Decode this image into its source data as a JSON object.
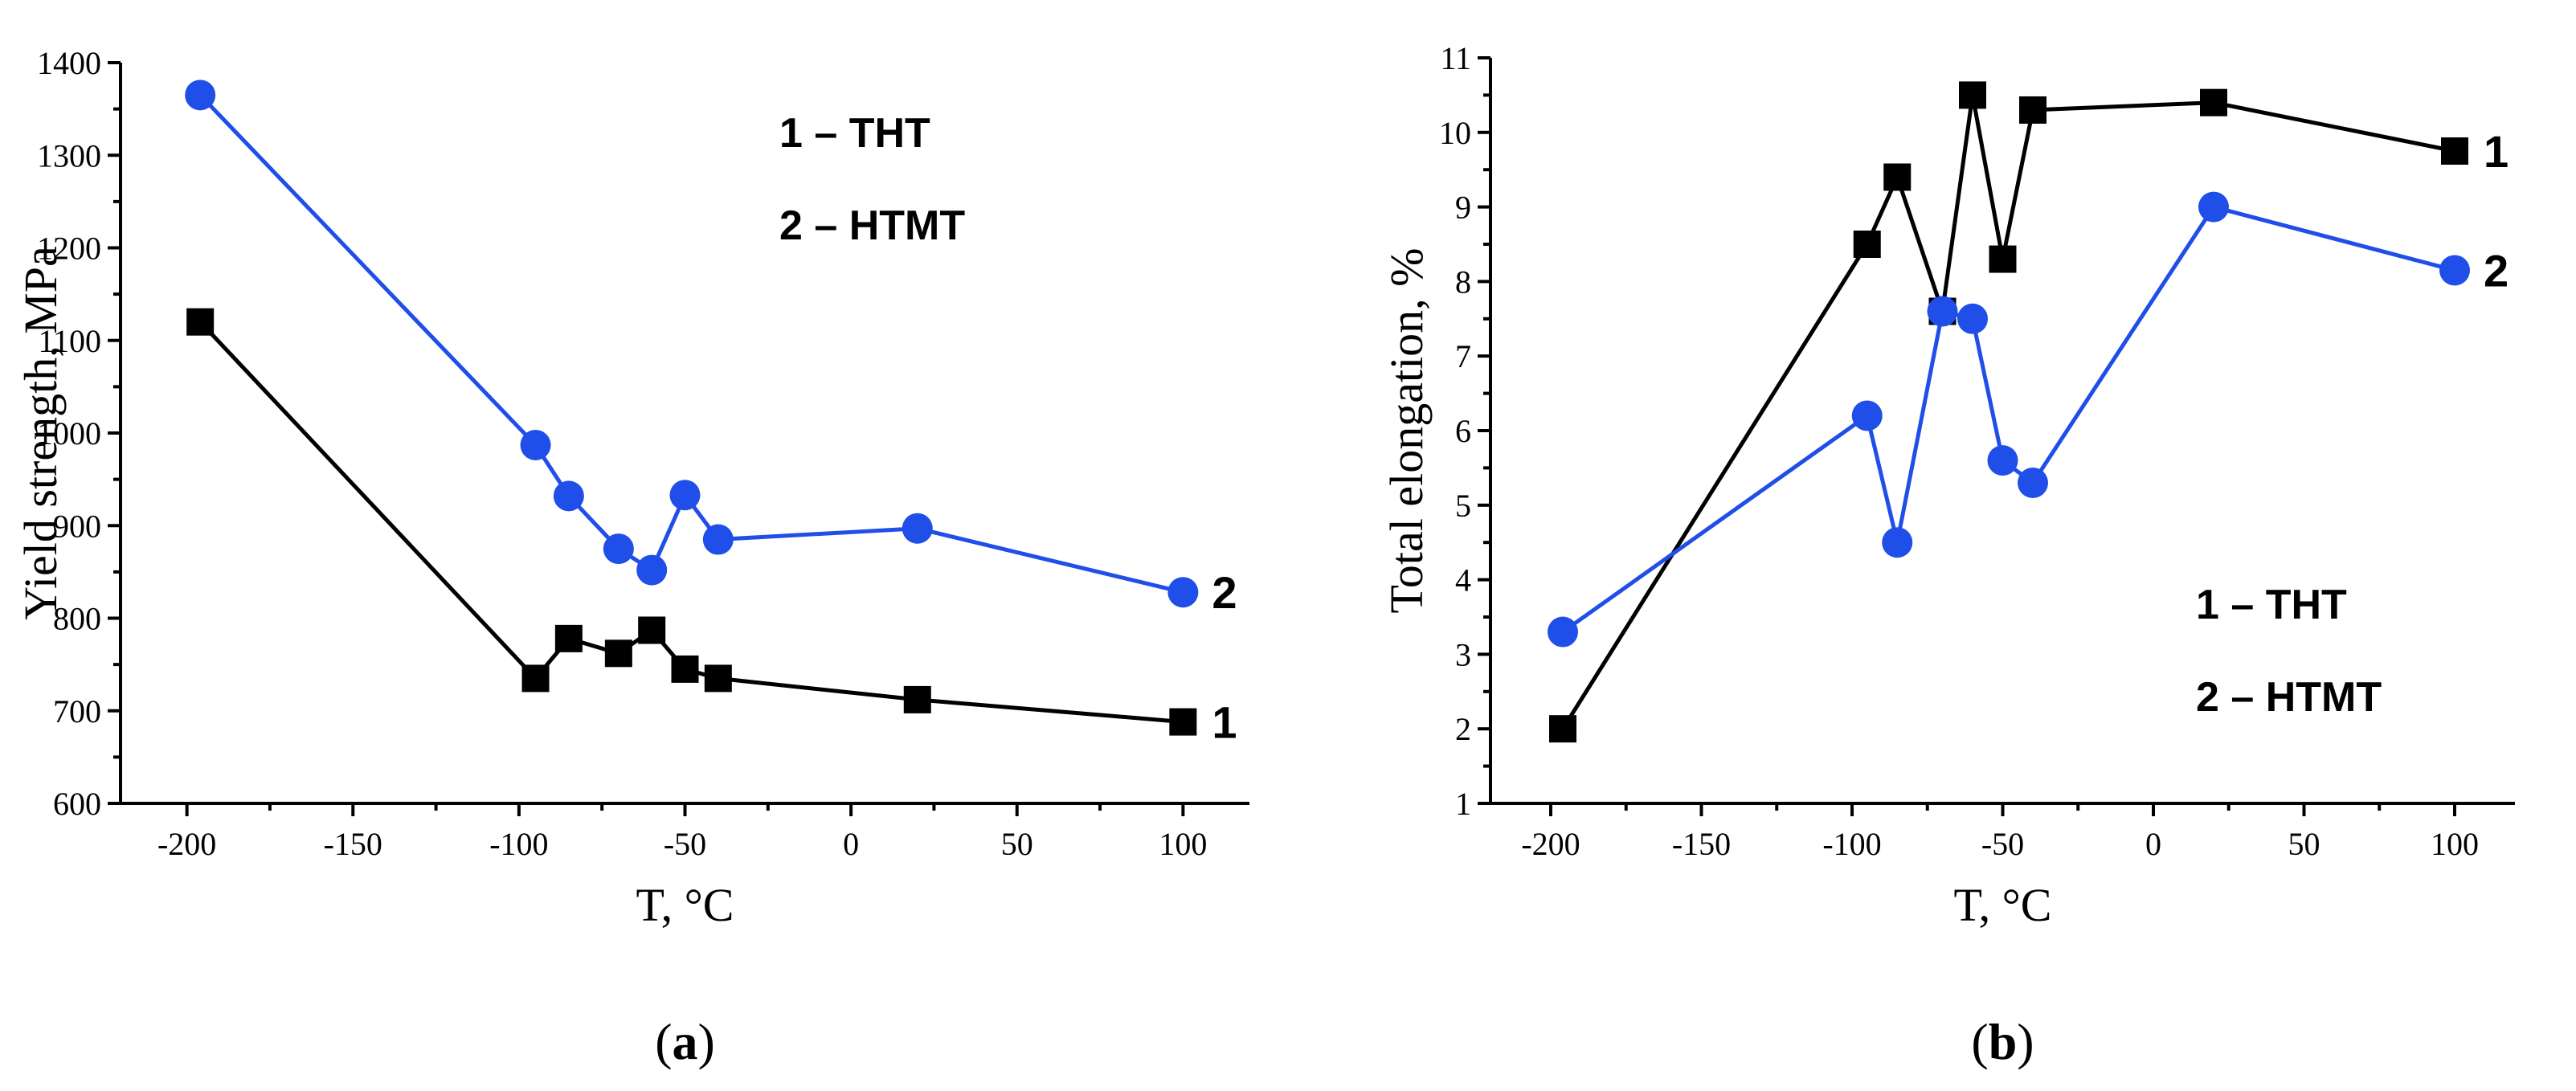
{
  "colors": {
    "series1": "#000000",
    "series2": "#1f4ee8"
  },
  "chart_data": [
    {
      "panel": "a",
      "type": "line",
      "xlabel": "T, °C",
      "ylabel": "Yield strength, MPa",
      "xlim": [
        -220,
        120
      ],
      "ylim": [
        600,
        1400
      ],
      "xticks": [
        -200,
        -150,
        -100,
        -50,
        0,
        50,
        100
      ],
      "yticks": [
        600,
        700,
        800,
        900,
        1000,
        1100,
        1200,
        1300,
        1400
      ],
      "legend": [
        "1 – THT",
        "2 – HTMT"
      ],
      "series": [
        {
          "name": "1",
          "marker": "square",
          "color": "#000000",
          "x": [
            -196,
            -95,
            -85,
            -70,
            -60,
            -50,
            -40,
            20,
            100
          ],
          "y": [
            1120,
            735,
            778,
            762,
            787,
            745,
            735,
            712,
            688
          ]
        },
        {
          "name": "2",
          "marker": "circle",
          "color": "#1f4ee8",
          "x": [
            -196,
            -95,
            -85,
            -70,
            -60,
            -50,
            -40,
            20,
            100
          ],
          "y": [
            1365,
            987,
            932,
            875,
            852,
            933,
            885,
            897,
            828
          ]
        }
      ]
    },
    {
      "panel": "b",
      "type": "line",
      "xlabel": "T, °C",
      "ylabel": "Total elongation, %",
      "xlim": [
        -220,
        120
      ],
      "ylim": [
        1,
        11
      ],
      "xticks": [
        -200,
        -150,
        -100,
        -50,
        0,
        50,
        100
      ],
      "yticks": [
        1,
        2,
        3,
        4,
        5,
        6,
        7,
        8,
        9,
        10,
        11
      ],
      "legend": [
        "1 – THT",
        "2 – HTMT"
      ],
      "series": [
        {
          "name": "1",
          "marker": "square",
          "color": "#000000",
          "x": [
            -196,
            -95,
            -85,
            -70,
            -60,
            -50,
            -40,
            20,
            100
          ],
          "y": [
            2.0,
            8.5,
            9.4,
            7.6,
            10.5,
            8.3,
            10.3,
            10.4,
            9.75
          ]
        },
        {
          "name": "2",
          "marker": "circle",
          "color": "#1f4ee8",
          "x": [
            -196,
            -95,
            -85,
            -70,
            -60,
            -50,
            -40,
            20,
            100
          ],
          "y": [
            3.3,
            6.2,
            4.5,
            7.6,
            7.5,
            5.6,
            5.3,
            9.0,
            8.15
          ]
        }
      ]
    }
  ],
  "panel_labels": [
    "(a)",
    "(b)"
  ]
}
